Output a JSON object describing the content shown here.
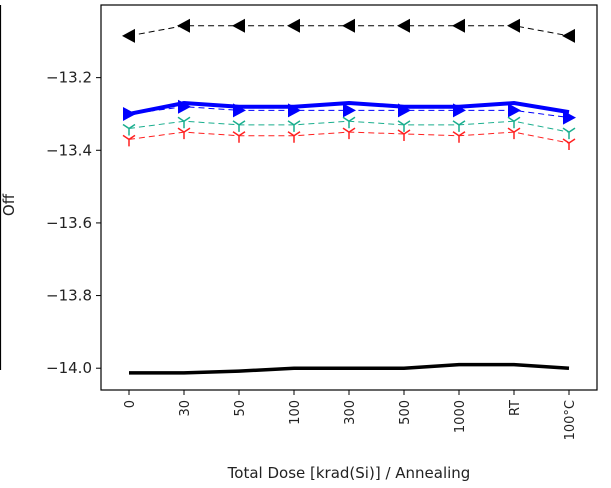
{
  "chart_data": {
    "type": "line",
    "xlabel": "Total Dose [krad(Si)] / Annealing",
    "ylabel": "Off",
    "categories": [
      "0",
      "30",
      "50",
      "100",
      "300",
      "500",
      "1000",
      "RT",
      "100°C"
    ],
    "ylim": [
      -14.06,
      -13.0
    ],
    "yticks": [
      {
        "value": -14.0,
        "label": "−14.0"
      },
      {
        "value": -13.8,
        "label": "−13.8"
      },
      {
        "value": -13.6,
        "label": "−13.6"
      },
      {
        "value": -13.4,
        "label": "−13.4"
      },
      {
        "value": -13.2,
        "label": "−13.2"
      }
    ],
    "series": [
      {
        "color": "#000000",
        "dash": true,
        "width": 1,
        "marker": "left",
        "values": [
          -13.085,
          -13.057,
          -13.057,
          -13.057,
          -13.057,
          -13.057,
          -13.057,
          -13.057,
          -13.085
        ]
      },
      {
        "color": "#0000ff",
        "dash": false,
        "width": 4,
        "marker": "none",
        "values": [
          -13.3,
          -13.27,
          -13.28,
          -13.28,
          -13.27,
          -13.28,
          -13.28,
          -13.27,
          -13.295
        ]
      },
      {
        "color": "#0000ff",
        "dash": true,
        "width": 1,
        "marker": "right",
        "values": [
          -13.3,
          -13.28,
          -13.29,
          -13.29,
          -13.29,
          -13.29,
          -13.29,
          -13.29,
          -13.31
        ]
      },
      {
        "color": "#1aae8e",
        "dash": true,
        "width": 1,
        "marker": "tri",
        "values": [
          -13.34,
          -13.32,
          -13.33,
          -13.33,
          -13.32,
          -13.33,
          -13.33,
          -13.32,
          -13.35
        ]
      },
      {
        "color": "#ff2020",
        "dash": true,
        "width": 1,
        "marker": "tri",
        "values": [
          -13.37,
          -13.35,
          -13.36,
          -13.36,
          -13.35,
          -13.355,
          -13.36,
          -13.35,
          -13.38
        ]
      },
      {
        "color": "#000000",
        "dash": false,
        "width": 3.5,
        "marker": "none",
        "values": [
          -14.013,
          -14.013,
          -14.008,
          -14.0,
          -14.0,
          -14.0,
          -13.99,
          -13.99,
          -14.0
        ]
      }
    ]
  }
}
